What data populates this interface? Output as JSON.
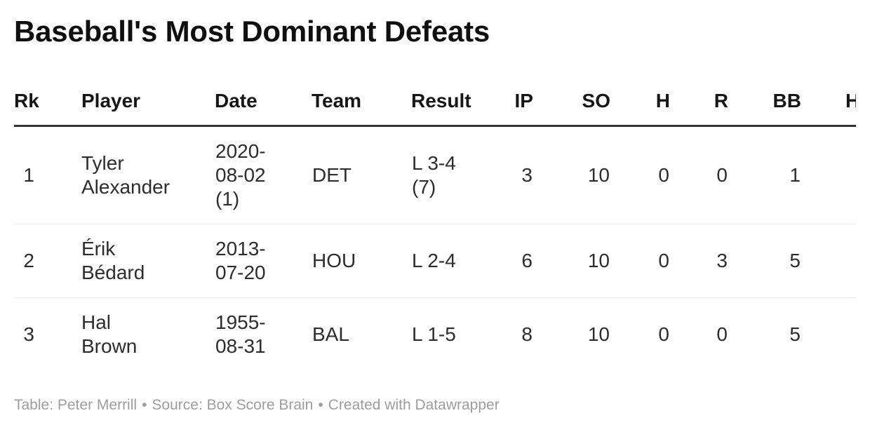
{
  "title": "Baseball's Most Dominant Defeats",
  "table": {
    "columns": [
      {
        "label": "Rk"
      },
      {
        "label": "Player"
      },
      {
        "label": "Date"
      },
      {
        "label": "Team"
      },
      {
        "label": "Result"
      },
      {
        "label": "IP"
      },
      {
        "label": "SO"
      },
      {
        "label": "H"
      },
      {
        "label": "R"
      },
      {
        "label": "BB"
      },
      {
        "label": "H"
      }
    ],
    "rows": [
      [
        "1",
        "Tyler Alexander",
        "2020-08-02 (1)",
        "DET",
        "L 3-4 (7)",
        "3",
        "10",
        "0",
        "0",
        "1",
        ""
      ],
      [
        "2",
        "Érik Bédard",
        "2013-07-20",
        "HOU",
        "L 2-4",
        "6",
        "10",
        "0",
        "3",
        "5",
        ""
      ],
      [
        "3",
        "Hal Brown",
        "1955-08-31",
        "BAL",
        "L 1-5",
        "8",
        "10",
        "0",
        "0",
        "5",
        ""
      ]
    ]
  },
  "footer": {
    "table_credit": "Table: Peter Merrill",
    "separator": "•",
    "source_credit": "Source: Box Score Brain",
    "datawrapper_credit": "Created with Datawrapper"
  },
  "colors": {
    "header_rule": "#333333",
    "row_divider": "#e9e9e9",
    "body_text": "#2d2d2d",
    "muted_text": "#9d9d9d"
  }
}
